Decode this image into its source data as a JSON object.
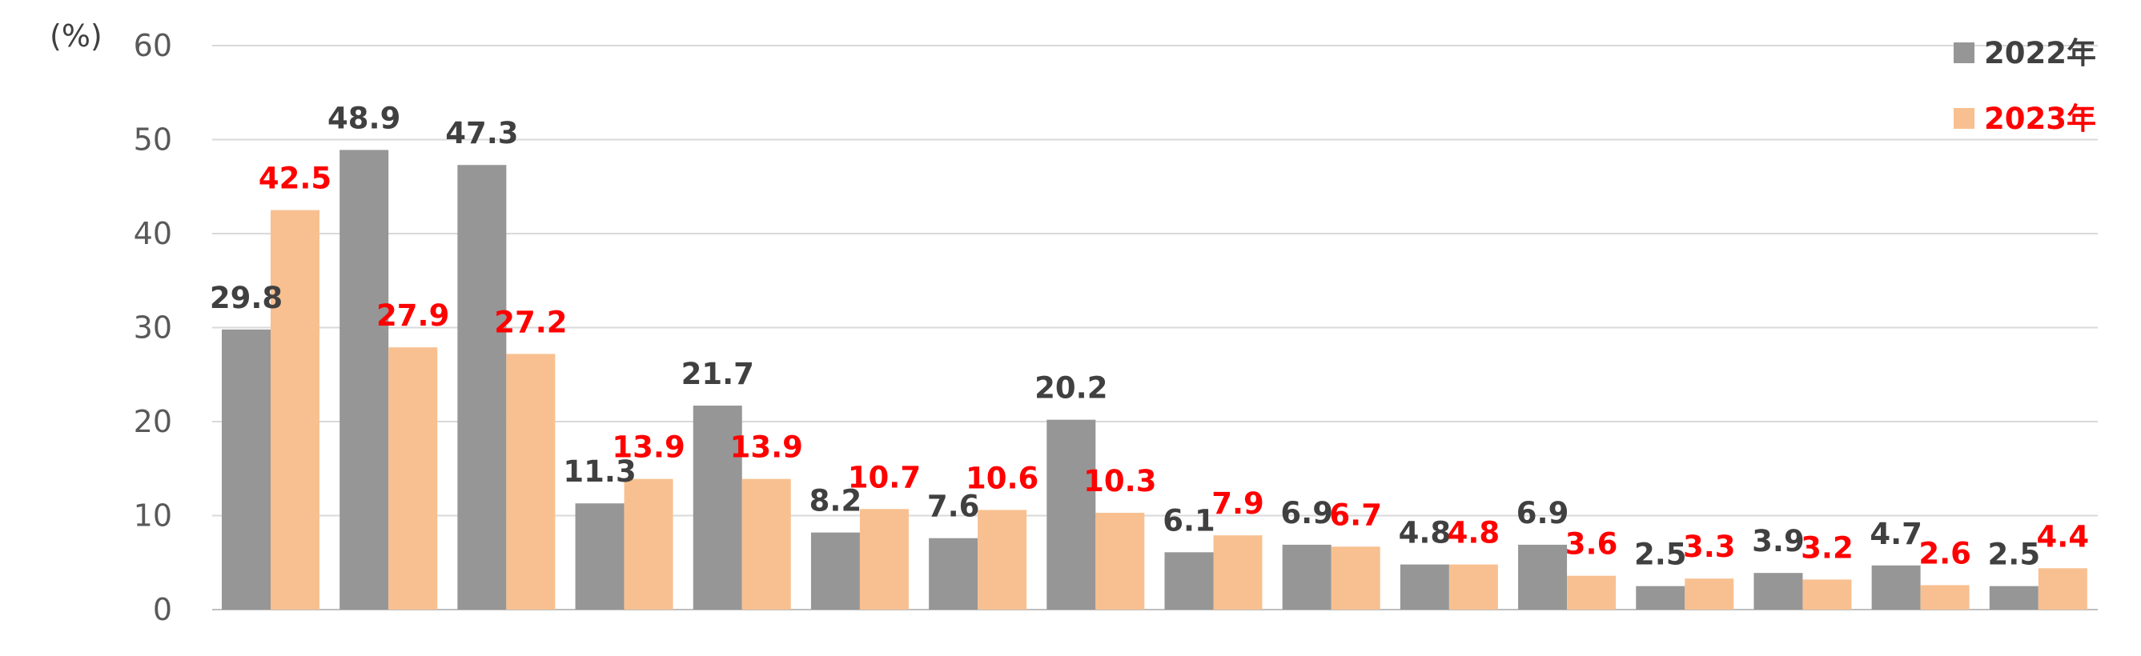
{
  "chart_data": {
    "type": "bar",
    "unit_label": "(%)",
    "categories": [
      "",
      "",
      "",
      "",
      "",
      "",
      "",
      "",
      "",
      "",
      "",
      "",
      "",
      "",
      "",
      ""
    ],
    "ylim": [
      0,
      60
    ],
    "yticks": [
      0,
      10,
      20,
      30,
      40,
      50,
      60
    ],
    "grid": true,
    "legend_position": "top-right",
    "series": [
      {
        "name": "2022年",
        "color": "#969696",
        "label_color": "#404040",
        "values": [
          29.8,
          48.9,
          47.3,
          11.3,
          21.7,
          8.2,
          7.6,
          20.2,
          6.1,
          6.9,
          4.8,
          6.9,
          2.5,
          3.9,
          4.7,
          2.5
        ]
      },
      {
        "name": "2023年",
        "color": "#f8c090",
        "label_color": "#ff0000",
        "values": [
          42.5,
          27.9,
          27.2,
          13.9,
          13.9,
          10.7,
          10.6,
          10.3,
          7.9,
          6.7,
          4.8,
          3.6,
          3.3,
          3.2,
          2.6,
          4.4
        ]
      }
    ]
  }
}
